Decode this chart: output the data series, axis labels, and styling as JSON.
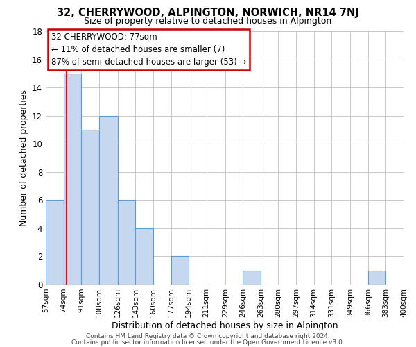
{
  "title": "32, CHERRYWOOD, ALPINGTON, NORWICH, NR14 7NJ",
  "subtitle": "Size of property relative to detached houses in Alpington",
  "xlabel": "Distribution of detached houses by size in Alpington",
  "ylabel": "Number of detached properties",
  "bin_edges": [
    57,
    74,
    91,
    108,
    126,
    143,
    160,
    177,
    194,
    211,
    229,
    246,
    263,
    280,
    297,
    314,
    331,
    349,
    366,
    383,
    400
  ],
  "bin_labels": [
    "57sqm",
    "74sqm",
    "91sqm",
    "108sqm",
    "126sqm",
    "143sqm",
    "160sqm",
    "177sqm",
    "194sqm",
    "211sqm",
    "229sqm",
    "246sqm",
    "263sqm",
    "280sqm",
    "297sqm",
    "314sqm",
    "331sqm",
    "349sqm",
    "366sqm",
    "383sqm",
    "400sqm"
  ],
  "counts": [
    6,
    15,
    11,
    12,
    6,
    4,
    0,
    2,
    0,
    0,
    0,
    1,
    0,
    0,
    0,
    0,
    0,
    0,
    1,
    0
  ],
  "bar_color": "#c5d8f0",
  "bar_edge_color": "#5b9bd5",
  "red_line_x": 77,
  "ylim": [
    0,
    18
  ],
  "yticks": [
    0,
    2,
    4,
    6,
    8,
    10,
    12,
    14,
    16,
    18
  ],
  "annotation_title": "32 CHERRYWOOD: 77sqm",
  "annotation_line1": "← 11% of detached houses are smaller (7)",
  "annotation_line2": "87% of semi-detached houses are larger (53) →",
  "annotation_box_color": "#ffffff",
  "annotation_box_edge": "#cc0000",
  "footer1": "Contains HM Land Registry data © Crown copyright and database right 2024.",
  "footer2": "Contains public sector information licensed under the Open Government Licence v3.0.",
  "background_color": "#ffffff",
  "grid_color": "#c8c8c8"
}
